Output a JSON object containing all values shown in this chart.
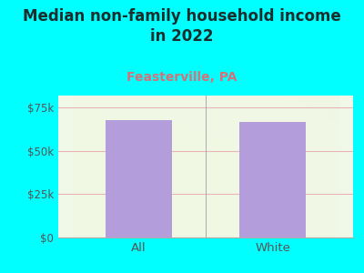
{
  "title": "Median non-family household income\nin 2022",
  "subtitle": "Feasterville, PA",
  "categories": [
    "All",
    "White"
  ],
  "values": [
    68000,
    67000
  ],
  "bar_color": "#b39ddb",
  "background_color": "#00ffff",
  "plot_bg_color": "#eaf5e0",
  "title_fontsize": 12,
  "subtitle_fontsize": 10,
  "subtitle_color": "#d4727a",
  "title_color": "#1a2e2e",
  "tick_color": "#555555",
  "ylabel_ticks": [
    0,
    25000,
    50000,
    75000
  ],
  "ylabel_labels": [
    "$0",
    "$25k",
    "$50k",
    "$75k"
  ],
  "ylim": [
    0,
    82000
  ],
  "grid_color": "#e8b4b8",
  "bar_width": 0.5
}
